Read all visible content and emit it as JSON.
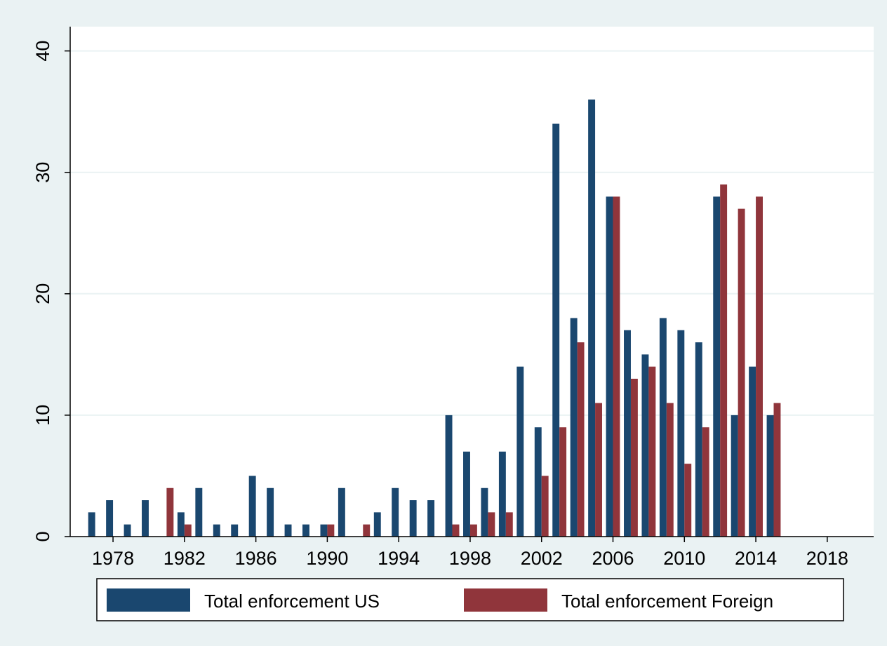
{
  "chart_data": {
    "type": "bar",
    "title": "",
    "xlabel": "",
    "ylabel": "",
    "ylim": [
      0,
      42
    ],
    "xlim": [
      1975.6,
      2020.6
    ],
    "yticks": [
      0,
      10,
      20,
      30,
      40
    ],
    "xtick_labels": [
      "1978",
      "1982",
      "1986",
      "1990",
      "1994",
      "1998",
      "2002",
      "2006",
      "2010",
      "2014",
      "2018"
    ],
    "grid": true,
    "legend_position": "bottom",
    "x": [
      1977,
      1978,
      1979,
      1980,
      1981,
      1982,
      1983,
      1984,
      1985,
      1986,
      1987,
      1988,
      1989,
      1990,
      1991,
      1992,
      1993,
      1994,
      1995,
      1996,
      1997,
      1998,
      1999,
      2000,
      2001,
      2002,
      2003,
      2004,
      2005,
      2006,
      2007,
      2008,
      2009,
      2010,
      2011,
      2012,
      2013,
      2014,
      2015,
      2016,
      2017,
      2018,
      2019
    ],
    "series": [
      {
        "name": "Total enforcement US",
        "color": "#1a476f",
        "values": [
          2,
          3,
          1,
          3,
          0,
          2,
          4,
          1,
          1,
          5,
          4,
          1,
          1,
          1,
          4,
          0,
          2,
          4,
          3,
          3,
          10,
          7,
          4,
          7,
          14,
          9,
          34,
          18,
          36,
          28,
          17,
          15,
          18,
          17,
          16,
          28,
          10,
          14,
          10,
          0,
          0,
          0,
          0
        ]
      },
      {
        "name": "Total enforcement Foreign",
        "color": "#90353b",
        "values": [
          0,
          0,
          0,
          0,
          4,
          1,
          0,
          0,
          0,
          0,
          0,
          0,
          0,
          1,
          0,
          1,
          0,
          0,
          0,
          0,
          1,
          1,
          2,
          2,
          0,
          5,
          9,
          16,
          11,
          28,
          13,
          14,
          11,
          6,
          9,
          29,
          27,
          28,
          11,
          0,
          0,
          0,
          0
        ]
      }
    ]
  }
}
